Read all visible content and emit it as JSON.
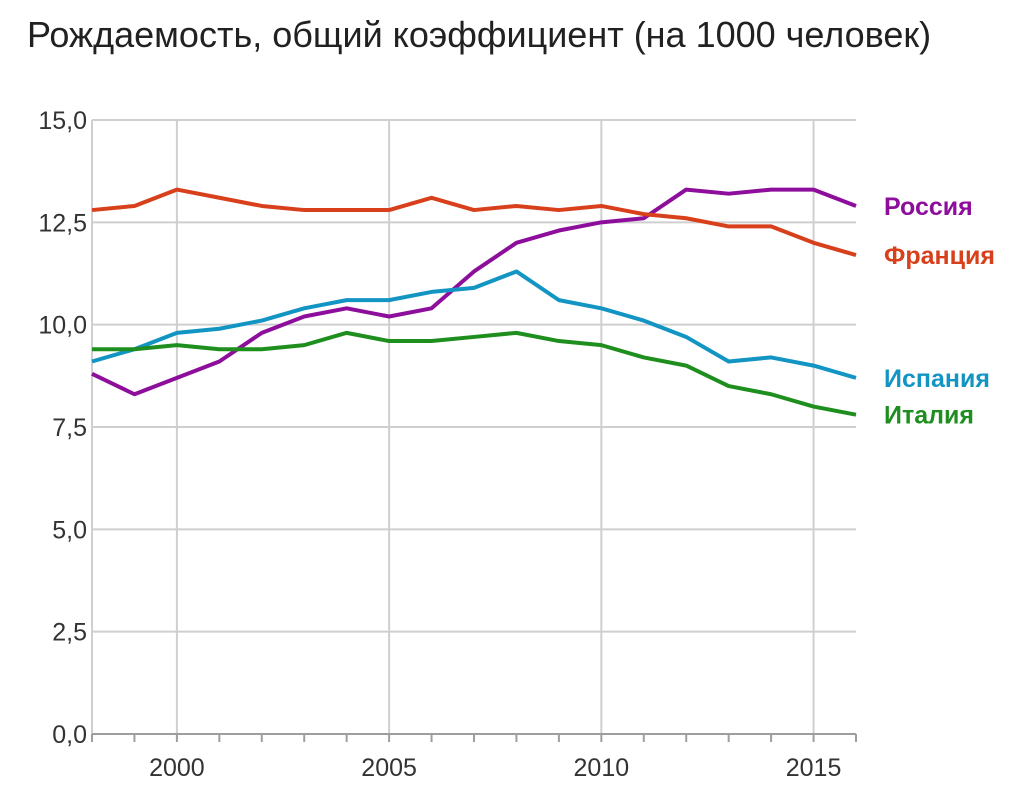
{
  "title": "Рождаемость, общий коэффициент (на 1000 человек)",
  "chart_data": {
    "type": "line",
    "title": "Рождаемость, общий коэффициент (на 1000 человек)",
    "xlabel": "",
    "ylabel": "",
    "xlim": [
      1998,
      2016
    ],
    "ylim": [
      0,
      15
    ],
    "grid": true,
    "y_ticks": [
      0,
      2.5,
      5,
      7.5,
      10,
      12.5,
      15
    ],
    "y_tick_labels": [
      "0,0",
      "2,5",
      "5,0",
      "7,5",
      "10,0",
      "12,5",
      "15,0"
    ],
    "x_ticks": [
      2000,
      2005,
      2010,
      2015
    ],
    "x_tick_labels": [
      "2000",
      "2005",
      "2010",
      "2015"
    ],
    "x": [
      1998,
      1999,
      2000,
      2001,
      2002,
      2003,
      2004,
      2005,
      2006,
      2007,
      2008,
      2009,
      2010,
      2011,
      2012,
      2013,
      2014,
      2015,
      2016
    ],
    "legend_placement": "right, inline at line ends",
    "series": [
      {
        "name": "Россия",
        "color": "#8E0E9C",
        "values": [
          8.8,
          8.3,
          8.7,
          9.1,
          9.8,
          10.2,
          10.4,
          10.2,
          10.4,
          11.3,
          12.0,
          12.3,
          12.5,
          12.6,
          13.3,
          13.2,
          13.3,
          13.3,
          12.9
        ]
      },
      {
        "name": "Франция",
        "color": "#D8401C",
        "values": [
          12.8,
          12.9,
          13.3,
          13.1,
          12.9,
          12.8,
          12.8,
          12.8,
          13.1,
          12.8,
          12.9,
          12.8,
          12.9,
          12.7,
          12.6,
          12.4,
          12.4,
          12.0,
          11.7
        ]
      },
      {
        "name": "Испания",
        "color": "#1295C3",
        "values": [
          9.1,
          9.4,
          9.8,
          9.9,
          10.1,
          10.4,
          10.6,
          10.6,
          10.8,
          10.9,
          11.3,
          10.6,
          10.4,
          10.1,
          9.7,
          9.1,
          9.2,
          9.0,
          8.7
        ]
      },
      {
        "name": "Италия",
        "color": "#1E8F1E",
        "values": [
          9.4,
          9.4,
          9.5,
          9.4,
          9.4,
          9.5,
          9.8,
          9.6,
          9.6,
          9.7,
          9.8,
          9.6,
          9.5,
          9.2,
          9.0,
          8.5,
          8.3,
          8.0,
          7.8
        ]
      }
    ]
  }
}
